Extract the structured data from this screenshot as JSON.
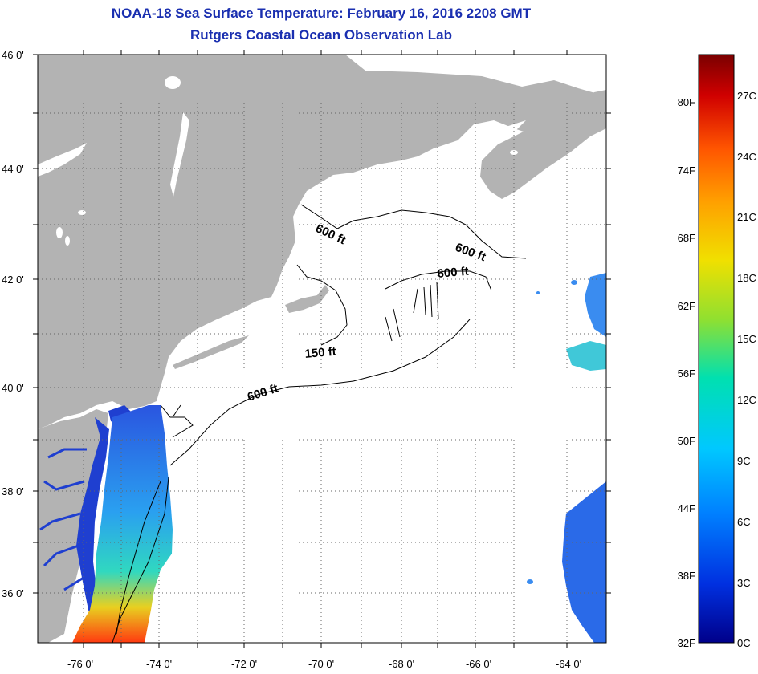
{
  "title": "NOAA-18 Sea Surface Temperature:  February 16, 2016 2208 GMT",
  "subtitle": "Rutgers Coastal Ocean Observation Lab",
  "axes": {
    "lat_labels": [
      "46 0'",
      "44 0'",
      "42 0'",
      "40 0'",
      "38 0'",
      "36 0'"
    ],
    "lon_labels": [
      "-76 0'",
      "-74 0'",
      "-72 0'",
      "-70 0'",
      "-68 0'",
      "-66 0'",
      "-64 0'"
    ]
  },
  "contour_labels": [
    {
      "id": "gulf-maine",
      "text": "600 ft"
    },
    {
      "id": "georges-east",
      "text": "600 ft"
    },
    {
      "id": "georges-north",
      "text": "600 ft"
    },
    {
      "id": "shelf-150",
      "text": "150 ft"
    },
    {
      "id": "shelf-600",
      "text": "600 ft"
    }
  ],
  "colorbar": {
    "fahrenheit": [
      "80F",
      "74F",
      "68F",
      "62F",
      "56F",
      "50F",
      "44F",
      "38F",
      "32F"
    ],
    "celsius": [
      "27C",
      "24C",
      "21C",
      "18C",
      "15C",
      "12C",
      "9C",
      "6C",
      "3C",
      "0C"
    ],
    "colors": [
      "#7a0000",
      "#d00000",
      "#ff5500",
      "#ffa000",
      "#f0e000",
      "#90e030",
      "#00e0b0",
      "#00c8ff",
      "#0080ff",
      "#0030e0",
      "#00008a"
    ]
  },
  "colors": {
    "land": "#b3b3b3",
    "ocean": "#ffffff",
    "title": "#1a2fb0"
  }
}
